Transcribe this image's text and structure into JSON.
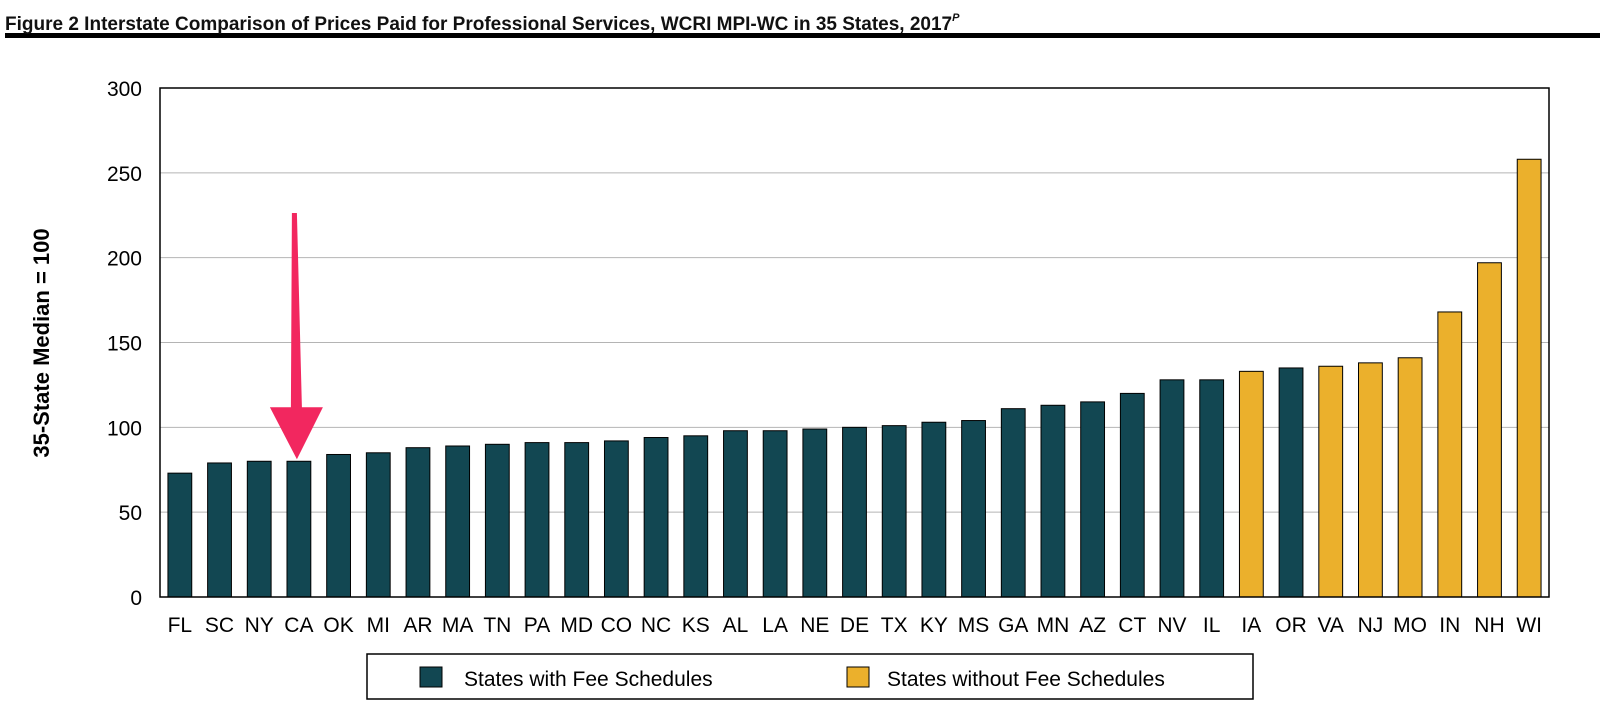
{
  "title": {
    "text": "Figure 2  Interstate Comparison of Prices Paid for Professional Services, WCRI MPI-WC in 35 States, 2017",
    "superscript": "P"
  },
  "colors": {
    "with_fee": "#124752",
    "without_fee": "#ebb02c",
    "arrow": "#f2275f",
    "grid": "#b4b4b4",
    "axis": "#000000"
  },
  "chart_data": {
    "type": "bar",
    "ylabel": "35-State Median = 100",
    "xlabel": "",
    "ylim": [
      0,
      300
    ],
    "yticks": [
      0,
      50,
      100,
      150,
      200,
      250,
      300
    ],
    "grid": true,
    "legend_position": "bottom-center",
    "annotation": {
      "type": "arrow",
      "target": "CA"
    },
    "categories": [
      "FL",
      "SC",
      "NY",
      "CA",
      "OK",
      "MI",
      "AR",
      "MA",
      "TN",
      "PA",
      "MD",
      "CO",
      "NC",
      "KS",
      "AL",
      "LA",
      "NE",
      "DE",
      "TX",
      "KY",
      "MS",
      "GA",
      "MN",
      "AZ",
      "CT",
      "NV",
      "IL",
      "IA",
      "OR",
      "VA",
      "NJ",
      "MO",
      "IN",
      "NH",
      "WI"
    ],
    "values": [
      73,
      79,
      80,
      80,
      84,
      85,
      88,
      89,
      90,
      91,
      91,
      92,
      94,
      95,
      98,
      98,
      99,
      100,
      101,
      103,
      104,
      111,
      113,
      115,
      120,
      128,
      128,
      133,
      135,
      136,
      138,
      141,
      168,
      197,
      258
    ],
    "groups": [
      "with",
      "with",
      "with",
      "with",
      "with",
      "with",
      "with",
      "with",
      "with",
      "with",
      "with",
      "with",
      "with",
      "with",
      "with",
      "with",
      "with",
      "with",
      "with",
      "with",
      "with",
      "with",
      "with",
      "with",
      "with",
      "with",
      "with",
      "without",
      "with",
      "without",
      "without",
      "without",
      "without",
      "without",
      "without"
    ],
    "series": [
      {
        "name": "States with Fee Schedules",
        "key": "with"
      },
      {
        "name": "States without Fee Schedules",
        "key": "without"
      }
    ]
  }
}
